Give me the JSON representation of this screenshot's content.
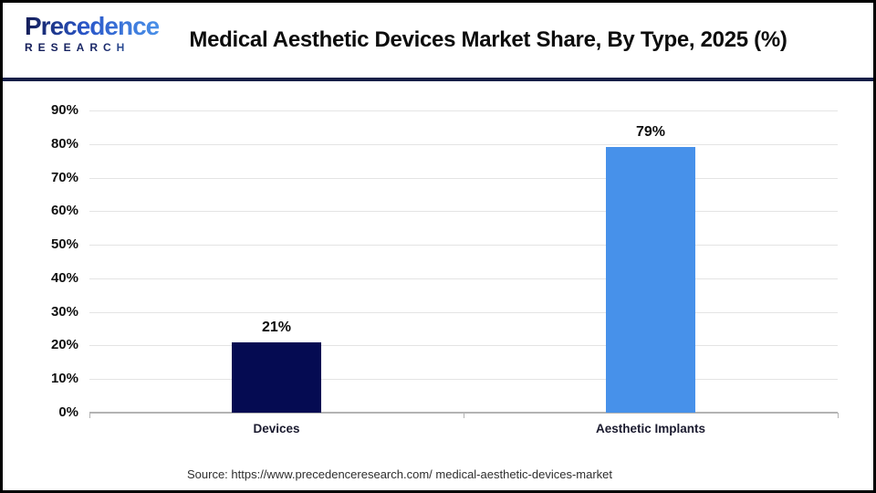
{
  "header": {
    "logo": {
      "line1": "Precedence",
      "line2": "RESEARCH"
    },
    "title": "Medical Aesthetic Devices Market Share, By Type, 2025 (%)"
  },
  "chart_data": {
    "type": "bar",
    "title": "Medical Aesthetic Devices Market Share, By Type, 2025 (%)",
    "categories": [
      "Devices",
      "Aesthetic Implants"
    ],
    "values": [
      21,
      79
    ],
    "value_labels": [
      "21%",
      "79%"
    ],
    "bar_colors": [
      "#050b52",
      "#4791ea"
    ],
    "xlabel": "",
    "ylabel": "",
    "ylim": [
      0,
      90
    ],
    "ytick_step": 10,
    "ytick_labels": [
      "0%",
      "10%",
      "20%",
      "30%",
      "40%",
      "50%",
      "60%",
      "70%",
      "80%",
      "90%"
    ],
    "grid": true,
    "legend": false
  },
  "footer": {
    "source": "Source: https://www.precedenceresearch.com/ medical-aesthetic-devices-market"
  },
  "colors": {
    "divider": "#161e47",
    "grid": "#e4e4e4",
    "axis": "#b3b3b3",
    "bar_navy": "#050b52",
    "bar_blue": "#4791ea"
  }
}
